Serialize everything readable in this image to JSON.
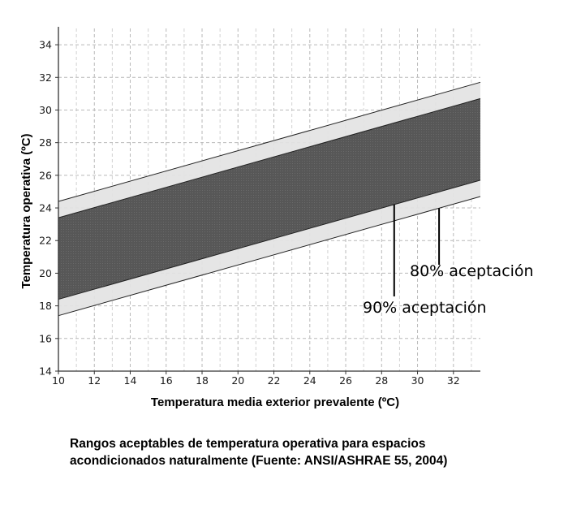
{
  "chart_data": {
    "type": "area",
    "xlabel": "Temperatura media exterior prevalente (ºC)",
    "ylabel": "Temperatura operativa (ºC)",
    "xlim": [
      10,
      33.5
    ],
    "ylim": [
      14,
      35
    ],
    "x_ticks": [
      10,
      12,
      14,
      16,
      18,
      20,
      22,
      24,
      26,
      28,
      30,
      32
    ],
    "y_ticks": [
      14,
      16,
      18,
      20,
      22,
      24,
      26,
      28,
      30,
      32,
      34
    ],
    "grid": true,
    "bands": [
      {
        "name": "80% aceptación",
        "x": [
          10,
          33.5
        ],
        "upper": [
          24.4,
          31.7
        ],
        "lower": [
          17.4,
          24.7
        ],
        "color": "#e3e3e3"
      },
      {
        "name": "90% aceptación",
        "x": [
          10,
          33.5
        ],
        "upper": [
          23.4,
          30.7
        ],
        "lower": [
          18.4,
          25.7
        ],
        "color": "#555555"
      }
    ],
    "annotations": [
      {
        "text": "80% aceptación",
        "points_to_x": 31.2
      },
      {
        "text": "90% aceptación",
        "points_to_x": 28.7
      }
    ]
  },
  "caption": {
    "line1": "Rangos aceptables de temperatura operativa para espacios",
    "line2": "acondicionados naturalmente (Fuente: ANSI/ASHRAE 55, 2004)"
  }
}
